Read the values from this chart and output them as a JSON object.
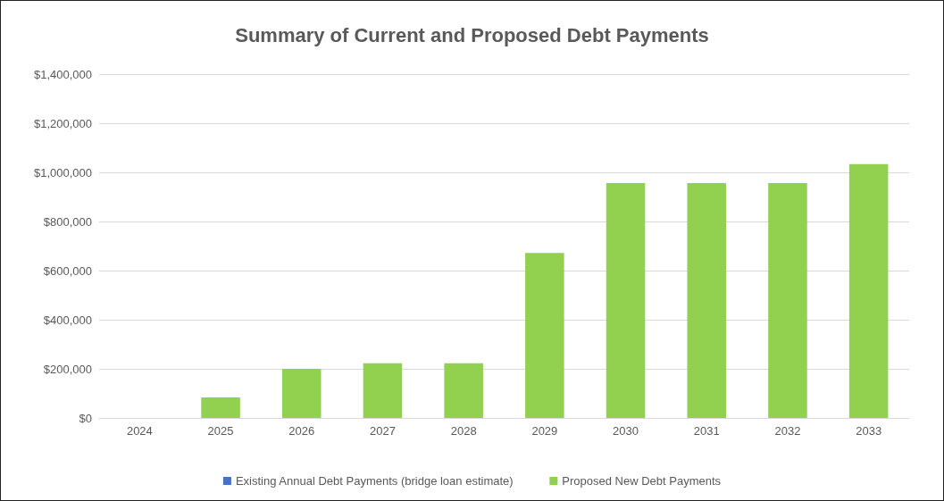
{
  "chart_data": {
    "type": "bar",
    "title": "Summary of Current and Proposed Debt Payments",
    "categories": [
      "2024",
      "2025",
      "2026",
      "2027",
      "2028",
      "2029",
      "2030",
      "2031",
      "2032",
      "2033"
    ],
    "series": [
      {
        "name": "Existing Annual Debt Payments (bridge loan estimate)",
        "color": "#4472c4",
        "values": [
          0,
          0,
          0,
          0,
          0,
          0,
          0,
          0,
          0,
          0
        ]
      },
      {
        "name": "Proposed New Debt Payments",
        "color": "#92d050",
        "values": [
          0,
          84000,
          200000,
          223000,
          223000,
          672000,
          956000,
          956000,
          956000,
          1034000
        ]
      }
    ],
    "stacked": true,
    "ylim": [
      0,
      1400000
    ],
    "yticks": [
      {
        "value": 0,
        "label": "$0"
      },
      {
        "value": 200000,
        "label": "$200,000"
      },
      {
        "value": 400000,
        "label": "$400,000"
      },
      {
        "value": 600000,
        "label": "$600,000"
      },
      {
        "value": 800000,
        "label": "$800,000"
      },
      {
        "value": 1000000,
        "label": "$1,000,000"
      },
      {
        "value": 1200000,
        "label": "$1,200,000"
      },
      {
        "value": 1400000,
        "label": "$1,400,000"
      }
    ],
    "grid": "y",
    "legend": "bottom"
  }
}
